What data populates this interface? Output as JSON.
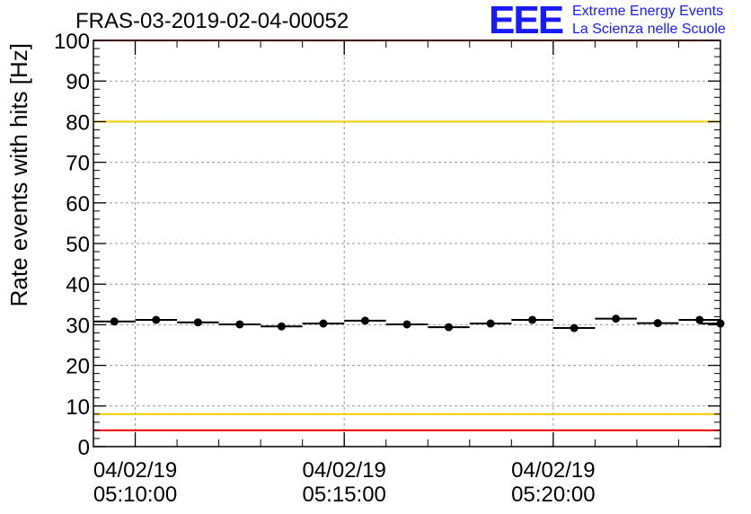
{
  "header": {
    "title": "FRAS-03-2019-02-04-00052",
    "logo_mark": "EEE",
    "logo_line1": "Extreme Energy Events",
    "logo_line2": "La Scienza nelle Scuole"
  },
  "colors": {
    "red_limit": "#ff0000",
    "yellow_limit": "#ffcc00",
    "points": "#000000",
    "grid": "#999999",
    "logo": "#1a1aff"
  },
  "chart_data": {
    "type": "scatter",
    "title": "FRAS-03-2019-02-04-00052",
    "xlabel": "",
    "ylabel": "Rate events with hits [Hz]",
    "ylim": [
      0,
      100
    ],
    "xlim": [
      "2019-02-04 05:09:00",
      "2019-02-04 05:24:00"
    ],
    "y_ticks": [
      0,
      10,
      20,
      30,
      40,
      50,
      60,
      70,
      80,
      90,
      100
    ],
    "x_ticks": [
      {
        "value": "2019-02-04 05:10:00",
        "line1": "04/02/19",
        "line2": "05:10:00"
      },
      {
        "value": "2019-02-04 05:15:00",
        "line1": "04/02/19",
        "line2": "05:15:00"
      },
      {
        "value": "2019-02-04 05:20:00",
        "line1": "04/02/19",
        "line2": "05:20:00"
      }
    ],
    "grid": true,
    "points": [
      {
        "x": "2019-02-04 05:09:30",
        "y": 30.8
      },
      {
        "x": "2019-02-04 05:10:30",
        "y": 31.2
      },
      {
        "x": "2019-02-04 05:11:30",
        "y": 30.6
      },
      {
        "x": "2019-02-04 05:12:30",
        "y": 30.1
      },
      {
        "x": "2019-02-04 05:13:30",
        "y": 29.6
      },
      {
        "x": "2019-02-04 05:14:30",
        "y": 30.3
      },
      {
        "x": "2019-02-04 05:15:30",
        "y": 31.0
      },
      {
        "x": "2019-02-04 05:16:30",
        "y": 30.1
      },
      {
        "x": "2019-02-04 05:17:30",
        "y": 29.4
      },
      {
        "x": "2019-02-04 05:18:30",
        "y": 30.3
      },
      {
        "x": "2019-02-04 05:19:30",
        "y": 31.2
      },
      {
        "x": "2019-02-04 05:20:30",
        "y": 29.2
      },
      {
        "x": "2019-02-04 05:21:30",
        "y": 31.5
      },
      {
        "x": "2019-02-04 05:22:30",
        "y": 30.4
      },
      {
        "x": "2019-02-04 05:23:30",
        "y": 31.2
      },
      {
        "x": "2019-02-04 05:24:00",
        "y": 30.3
      }
    ],
    "reference_lines": [
      {
        "y": 100,
        "color": "#ff0000"
      },
      {
        "y": 80,
        "color": "#ffcc00"
      },
      {
        "y": 8,
        "color": "#ffcc00"
      },
      {
        "y": 4,
        "color": "#ff0000"
      }
    ]
  }
}
